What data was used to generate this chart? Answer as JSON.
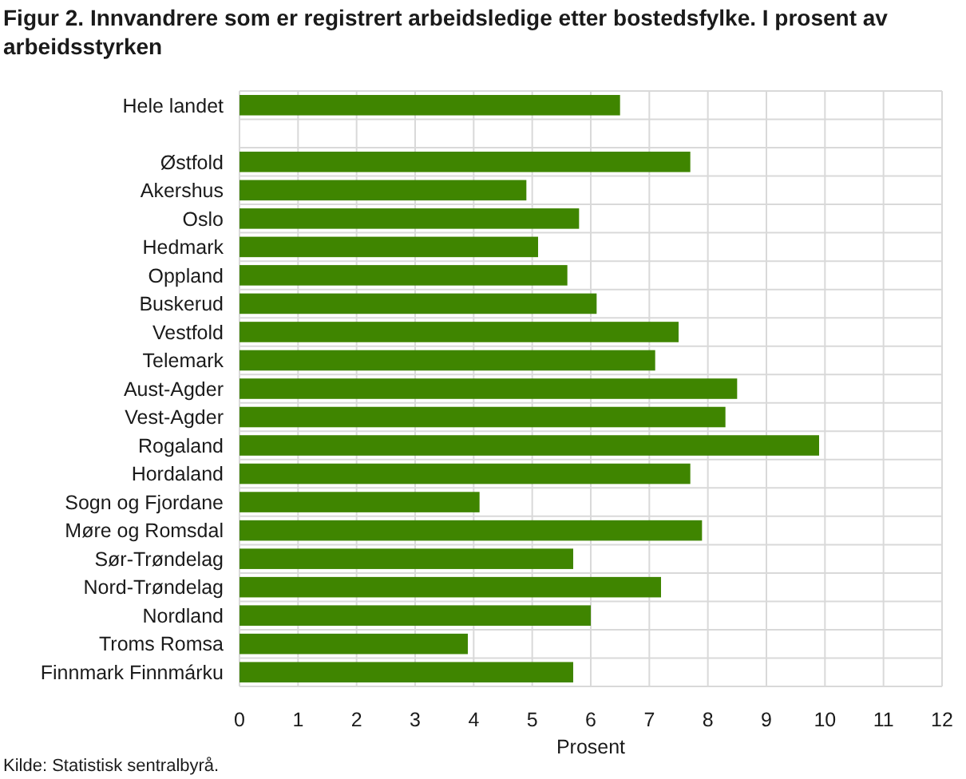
{
  "chart_data": {
    "type": "bar",
    "orientation": "horizontal",
    "title": "Figur 2. Innvandrere som er registrert arbeidsledige etter bostedsfylke. I prosent av arbeidsstyrken",
    "xlabel": "Prosent",
    "categories": [
      "Hele landet",
      null,
      "Østfold",
      "Akershus",
      "Oslo",
      "Hedmark",
      "Oppland",
      "Buskerud",
      "Vestfold",
      "Telemark",
      "Aust-Agder",
      "Vest-Agder",
      "Rogaland",
      "Hordaland",
      "Sogn og Fjordane",
      "Møre og Romsdal",
      "Sør-Trøndelag",
      "Nord-Trøndelag",
      "Nordland",
      "Troms Romsa",
      "Finnmark Finnmárku"
    ],
    "values": [
      6.5,
      null,
      7.7,
      4.9,
      5.8,
      5.1,
      5.6,
      6.1,
      7.5,
      7.1,
      8.5,
      8.3,
      9.9,
      7.7,
      4.1,
      7.9,
      5.7,
      7.2,
      6.0,
      3.9,
      5.7
    ],
    "color": "#3f8500",
    "xlim": [
      0,
      12
    ],
    "xticks": [
      0,
      1,
      2,
      3,
      4,
      5,
      6,
      7,
      8,
      9,
      10,
      11,
      12
    ],
    "grid": true,
    "annotations": [
      "Kilde: Statistisk sentralbyrå."
    ]
  }
}
